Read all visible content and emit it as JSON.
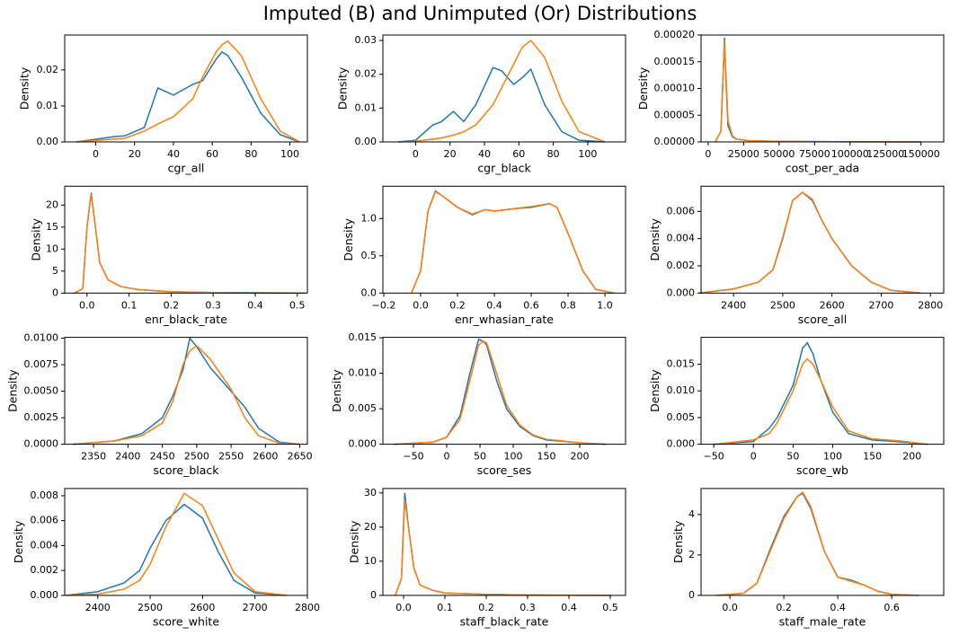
{
  "title": "Imputed (B) and Unimputed (Or) Distributions",
  "chart_data": [
    {
      "type": "line",
      "xlabel": "cgr_all",
      "ylabel": "Density",
      "x": [
        -10,
        10,
        15,
        25,
        32,
        40,
        50,
        55,
        62,
        65,
        68,
        75,
        85,
        95,
        105
      ],
      "series": [
        {
          "color": "#1f77b4",
          "values": [
            0,
            0.0015,
            0.0017,
            0.004,
            0.015,
            0.013,
            0.016,
            0.017,
            0.023,
            0.025,
            0.024,
            0.018,
            0.008,
            0.002,
            0
          ]
        },
        {
          "color": "#ff7f0e",
          "values": [
            0,
            0.0008,
            0.001,
            0.003,
            0.005,
            0.007,
            0.012,
            0.018,
            0.025,
            0.027,
            0.028,
            0.024,
            0.012,
            0.003,
            0
          ]
        }
      ],
      "xlim": [
        -16,
        109
      ],
      "ylim": [
        0,
        0.0297
      ],
      "xticks": [
        0,
        20,
        40,
        60,
        80,
        100
      ],
      "yticks": [
        {
          "value": 0,
          "label": "0.00"
        },
        0.01,
        0.02
      ]
    },
    {
      "type": "line",
      "xlabel": "cgr_black",
      "ylabel": "Density",
      "x": [
        -10,
        0,
        10,
        15,
        22,
        28,
        35,
        45,
        50,
        57,
        62,
        67,
        75,
        85,
        95,
        110
      ],
      "series": [
        {
          "color": "#1f77b4",
          "values": [
            0,
            0.0005,
            0.005,
            0.006,
            0.009,
            0.006,
            0.011,
            0.022,
            0.021,
            0.017,
            0.019,
            0.0215,
            0.011,
            0.003,
            0.0005,
            0
          ]
        },
        {
          "color": "#ff7f0e",
          "values": [
            0,
            0.0002,
            0.0008,
            0.0012,
            0.002,
            0.003,
            0.005,
            0.011,
            0.016,
            0.023,
            0.028,
            0.03,
            0.025,
            0.012,
            0.003,
            0
          ]
        }
      ],
      "xlim": [
        -19,
        122
      ],
      "ylim": [
        0,
        0.0316
      ],
      "xticks": [
        0,
        20,
        40,
        60,
        80,
        100
      ],
      "yticks": [
        {
          "value": 0,
          "label": "0.00"
        },
        0.01,
        0.02,
        0.03
      ]
    },
    {
      "type": "line",
      "xlabel": "cost_per_ada",
      "ylabel": "Density",
      "x": [
        5000,
        9000,
        10500,
        11500,
        12500,
        14000,
        17000,
        20000,
        30000,
        50000,
        100000,
        150000
      ],
      "series": [
        {
          "color": "#1f77b4",
          "values": [
            0,
            2e-05,
            0.00012,
            0.000195,
            0.00012,
            3e-05,
            1e-05,
            5e-06,
            2e-06,
            1e-06,
            2e-07,
            0
          ]
        },
        {
          "color": "#ff7f0e",
          "values": [
            0,
            2e-05,
            0.00012,
            0.00019,
            0.00013,
            4e-05,
            1.2e-05,
            5e-06,
            2e-06,
            1e-06,
            2e-07,
            0
          ]
        }
      ],
      "xlim": [
        -5000,
        166000
      ],
      "ylim": [
        0,
        0.0002
      ],
      "xticks": [
        0,
        25000,
        50000,
        75000,
        100000,
        125000,
        150000
      ],
      "yticks": [
        {
          "value": 0,
          "label": "0.00000"
        },
        5e-05,
        {
          "value": 0.0001,
          "label": "0.00010"
        },
        0.00015,
        {
          "value": 0.0002,
          "label": "0.00020"
        }
      ]
    },
    {
      "type": "line",
      "xlabel": "enr_black_rate",
      "ylabel": "Density",
      "x": [
        -0.03,
        -0.01,
        0,
        0.01,
        0.02,
        0.03,
        0.05,
        0.08,
        0.12,
        0.2,
        0.3,
        0.52
      ],
      "series": [
        {
          "color": "#1f77b4",
          "values": [
            0,
            1,
            15,
            22.8,
            15,
            7,
            3,
            1.5,
            0.8,
            0.3,
            0.1,
            0
          ]
        },
        {
          "color": "#ff7f0e",
          "values": [
            0,
            1,
            15,
            22.5,
            15,
            7,
            3,
            1.5,
            0.8,
            0.3,
            0.1,
            0
          ]
        }
      ],
      "xlim": [
        -0.053,
        0.524
      ],
      "ylim": [
        0,
        24.3
      ],
      "xticks": [
        {
          "value": 0,
          "label": "0.0"
        },
        0.1,
        0.2,
        0.3,
        0.4,
        0.5
      ],
      "yticks": [
        0,
        5,
        10,
        15,
        20
      ]
    },
    {
      "type": "line",
      "xlabel": "enr_whasian_rate",
      "ylabel": "Density",
      "x": [
        -0.05,
        0,
        0.04,
        0.08,
        0.12,
        0.2,
        0.28,
        0.35,
        0.4,
        0.5,
        0.6,
        0.7,
        0.74,
        0.8,
        0.88,
        0.95,
        1.05
      ],
      "series": [
        {
          "color": "#1f77b4",
          "values": [
            0,
            0.3,
            1.1,
            1.37,
            1.3,
            1.15,
            1.05,
            1.12,
            1.1,
            1.13,
            1.15,
            1.2,
            1.15,
            0.8,
            0.3,
            0.05,
            0
          ]
        },
        {
          "color": "#ff7f0e",
          "values": [
            0,
            0.3,
            1.1,
            1.36,
            1.3,
            1.15,
            1.06,
            1.12,
            1.1,
            1.13,
            1.16,
            1.2,
            1.15,
            0.8,
            0.3,
            0.05,
            0
          ]
        }
      ],
      "xlim": [
        -0.205,
        1.112
      ],
      "ylim": [
        0,
        1.434
      ],
      "xticks": [
        {
          "value": -0.2,
          "label": "−0.2"
        },
        {
          "value": 0,
          "label": "0.0"
        },
        0.2,
        0.4,
        0.6,
        0.8,
        {
          "value": 1,
          "label": "1.0"
        }
      ],
      "yticks": [
        {
          "value": 0,
          "label": "0.0"
        },
        0.5,
        {
          "value": 1,
          "label": "1.0"
        }
      ]
    },
    {
      "type": "line",
      "xlabel": "score_all",
      "ylabel": "Density",
      "x": [
        2330,
        2400,
        2450,
        2480,
        2500,
        2520,
        2540,
        2560,
        2580,
        2600,
        2640,
        2680,
        2720,
        2780
      ],
      "series": [
        {
          "color": "#1f77b4",
          "values": [
            0,
            0.0003,
            0.0008,
            0.0017,
            0.004,
            0.0068,
            0.0074,
            0.0068,
            0.0053,
            0.004,
            0.002,
            0.0008,
            0.0002,
            0
          ]
        },
        {
          "color": "#ff7f0e",
          "values": [
            0,
            0.0003,
            0.0008,
            0.0017,
            0.0041,
            0.0068,
            0.0074,
            0.0069,
            0.0053,
            0.004,
            0.002,
            0.0008,
            0.0002,
            0
          ]
        }
      ],
      "xlim": [
        2334,
        2827
      ],
      "ylim": [
        0,
        0.00785
      ],
      "xticks": [
        2400,
        2500,
        2600,
        2700,
        2800
      ],
      "yticks": [
        {
          "value": 0,
          "label": "0.000"
        },
        0.002,
        0.004,
        0.006
      ]
    },
    {
      "type": "line",
      "xlabel": "score_black",
      "ylabel": "Density",
      "x": [
        2320,
        2380,
        2420,
        2450,
        2465,
        2480,
        2490,
        2500,
        2520,
        2550,
        2570,
        2590,
        2620,
        2650
      ],
      "series": [
        {
          "color": "#1f77b4",
          "values": [
            0,
            0.0003,
            0.001,
            0.0025,
            0.0045,
            0.007,
            0.01,
            0.0092,
            0.0072,
            0.005,
            0.0035,
            0.0015,
            0.0002,
            0
          ]
        },
        {
          "color": "#ff7f0e",
          "values": [
            0,
            0.0003,
            0.0008,
            0.002,
            0.004,
            0.0075,
            0.0088,
            0.0093,
            0.008,
            0.0052,
            0.0025,
            0.0008,
            0.0001,
            0
          ]
        }
      ],
      "xlim": [
        2308,
        2661
      ],
      "ylim": [
        0,
        0.01008
      ],
      "xticks": [
        2350,
        2400,
        2450,
        2500,
        2550,
        2600,
        2650
      ],
      "yticks": [
        {
          "value": 0,
          "label": "0.0000"
        },
        0.0025,
        {
          "value": 0.005,
          "label": "0.0050"
        },
        0.0075,
        {
          "value": 0.01,
          "label": "0.0100"
        }
      ]
    },
    {
      "type": "line",
      "xlabel": "score_ses",
      "ylabel": "Density",
      "x": [
        -80,
        -20,
        0,
        20,
        35,
        48,
        55,
        60,
        75,
        90,
        110,
        130,
        150,
        200,
        240
      ],
      "series": [
        {
          "color": "#1f77b4",
          "values": [
            0,
            0.0003,
            0.001,
            0.004,
            0.01,
            0.0148,
            0.0145,
            0.014,
            0.009,
            0.005,
            0.0025,
            0.0012,
            0.0006,
            0.0002,
            0
          ]
        },
        {
          "color": "#ff7f0e",
          "values": [
            0,
            0.0003,
            0.001,
            0.0035,
            0.009,
            0.014,
            0.0145,
            0.0143,
            0.01,
            0.0055,
            0.0027,
            0.0013,
            0.0007,
            0.0002,
            0
          ]
        }
      ],
      "xlim": [
        -96,
        269
      ],
      "ylim": [
        0,
        0.01506
      ],
      "xticks": [
        {
          "value": -50,
          "label": "−50"
        },
        0,
        50,
        100,
        150,
        200
      ],
      "yticks": [
        {
          "value": 0,
          "label": "0.000"
        },
        0.005,
        {
          "value": 0.01,
          "label": "0.010"
        },
        0.015
      ]
    },
    {
      "type": "line",
      "xlabel": "score_wb",
      "ylabel": "Density",
      "x": [
        -50,
        0,
        20,
        30,
        50,
        62,
        68,
        75,
        85,
        100,
        120,
        150,
        180,
        220
      ],
      "series": [
        {
          "color": "#1f77b4",
          "values": [
            0,
            0.0005,
            0.003,
            0.005,
            0.011,
            0.018,
            0.019,
            0.017,
            0.012,
            0.006,
            0.002,
            0.0008,
            0.0005,
            0
          ]
        },
        {
          "color": "#ff7f0e",
          "values": [
            0,
            0.0008,
            0.002,
            0.004,
            0.01,
            0.015,
            0.016,
            0.015,
            0.012,
            0.007,
            0.0025,
            0.001,
            0.0007,
            0
          ]
        }
      ],
      "xlim": [
        -66,
        240
      ],
      "ylim": [
        0,
        0.02003
      ],
      "xticks": [
        {
          "value": -50,
          "label": "−50"
        },
        0,
        50,
        100,
        150,
        200
      ],
      "yticks": [
        {
          "value": 0,
          "label": "0.000"
        },
        0.005,
        {
          "value": 0.01,
          "label": "0.010"
        },
        0.015
      ]
    },
    {
      "type": "line",
      "xlabel": "score_white",
      "ylabel": "Density",
      "x": [
        2340,
        2400,
        2450,
        2480,
        2500,
        2530,
        2565,
        2600,
        2630,
        2660,
        2700,
        2760
      ],
      "series": [
        {
          "color": "#1f77b4",
          "values": [
            0,
            0.0003,
            0.001,
            0.002,
            0.0038,
            0.006,
            0.0073,
            0.0062,
            0.0035,
            0.0012,
            0.0002,
            0
          ]
        },
        {
          "color": "#ff7f0e",
          "values": [
            0,
            0.0001,
            0.0005,
            0.0012,
            0.0025,
            0.0055,
            0.0082,
            0.0072,
            0.0045,
            0.0018,
            0.0003,
            0
          ]
        }
      ],
      "xlim": [
        2337,
        2800
      ],
      "ylim": [
        0,
        0.00858
      ],
      "xticks": [
        2400,
        2500,
        2600,
        2700,
        2800
      ],
      "yticks": [
        {
          "value": 0,
          "label": "0.000"
        },
        0.002,
        0.004,
        0.006,
        0.008
      ]
    },
    {
      "type": "line",
      "xlabel": "staff_black_rate",
      "ylabel": "Density",
      "x": [
        -0.02,
        -0.005,
        0.003,
        0.012,
        0.025,
        0.04,
        0.07,
        0.1,
        0.2,
        0.3,
        0.5
      ],
      "series": [
        {
          "color": "#1f77b4",
          "values": [
            0,
            5,
            30,
            20,
            8,
            3,
            1.5,
            0.7,
            0.3,
            0.1,
            0
          ]
        },
        {
          "color": "#ff7f0e",
          "values": [
            0,
            5,
            28,
            20,
            8,
            3,
            1.5,
            0.7,
            0.3,
            0.1,
            0
          ]
        }
      ],
      "xlim": [
        -0.05,
        0.537
      ],
      "ylim": [
        0,
        31.3
      ],
      "xticks": [
        {
          "value": 0,
          "label": "0.0"
        },
        0.1,
        0.2,
        0.3,
        0.4,
        0.5
      ],
      "yticks": [
        0,
        10,
        20,
        30
      ]
    },
    {
      "type": "line",
      "xlabel": "staff_male_rate",
      "ylabel": "Density",
      "x": [
        -0.05,
        0.05,
        0.1,
        0.15,
        0.2,
        0.25,
        0.27,
        0.3,
        0.35,
        0.4,
        0.45,
        0.5,
        0.55,
        0.6,
        0.7
      ],
      "series": [
        {
          "color": "#1f77b4",
          "values": [
            0,
            0.1,
            0.6,
            2.3,
            3.9,
            4.9,
            5.05,
            4.3,
            2.2,
            0.9,
            0.75,
            0.5,
            0.2,
            0.05,
            0
          ]
        },
        {
          "color": "#ff7f0e",
          "values": [
            0,
            0.1,
            0.6,
            2.2,
            3.8,
            4.9,
            5.1,
            4.4,
            2.2,
            0.9,
            0.7,
            0.5,
            0.2,
            0.05,
            0
          ]
        }
      ],
      "xlim": [
        -0.107,
        0.793
      ],
      "ylim": [
        0,
        5.29
      ],
      "xticks": [
        {
          "value": 0,
          "label": "0.0"
        },
        0.2,
        0.4,
        0.6
      ],
      "yticks": [
        0,
        2,
        4
      ]
    }
  ]
}
